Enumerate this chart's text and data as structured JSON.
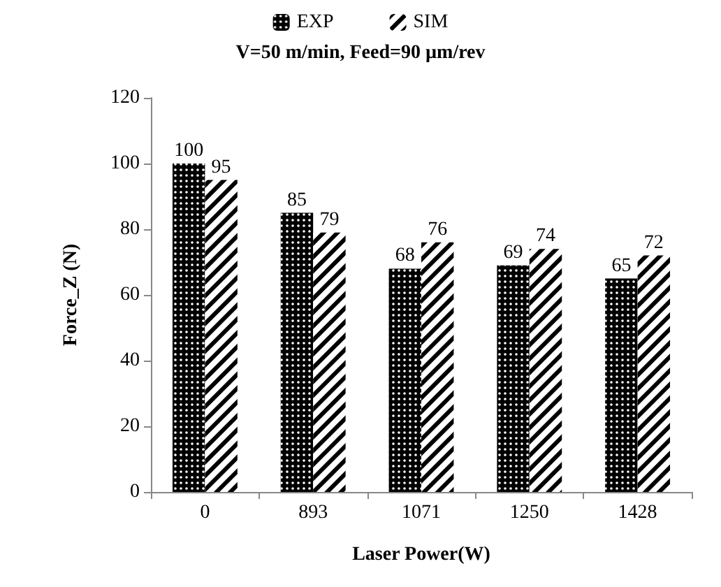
{
  "chart_data": {
    "type": "bar",
    "title": "V=50 m/min, Feed=90 µm/rev",
    "xlabel": "Laser Power(W)",
    "ylabel": "Force_Z (N)",
    "categories": [
      "0",
      "893",
      "1071",
      "1250",
      "1428"
    ],
    "series": [
      {
        "name": "EXP",
        "color": "#000000",
        "values": [
          100,
          85,
          68,
          69,
          65
        ]
      },
      {
        "name": "SIM",
        "color": "#000000",
        "values": [
          95,
          79,
          76,
          74,
          72
        ]
      }
    ],
    "ylim": [
      0,
      120
    ],
    "yticks": [
      0,
      20,
      40,
      60,
      80,
      100,
      120
    ],
    "grid": false,
    "legend": "top",
    "data_labels": true
  }
}
